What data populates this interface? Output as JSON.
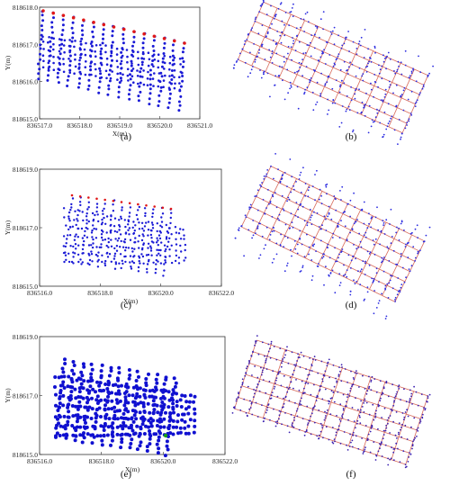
{
  "chart_data": [
    {
      "type": "scatter",
      "panel_label": "(a)",
      "xlabel": "X(m)",
      "ylabel": "Y(m)",
      "xlim": [
        836517.0,
        836521.0
      ],
      "ylim": [
        818615.0,
        818618.0
      ],
      "xticks": [
        "836517.0",
        "836518.0",
        "836519.0",
        "836520.0",
        "836521.0"
      ],
      "yticks": [
        "818615.0",
        "818616.0",
        "818617.0",
        "818618.0"
      ],
      "grid": false,
      "description_lines": "blue dots along 15 survey lines with red end markers",
      "colors": {
        "points": "#1a1ad6",
        "markers": "#e01818"
      }
    },
    {
      "type": "scatter",
      "panel_label": "(b)",
      "xlabel": "",
      "ylabel": "",
      "grid": false,
      "colors": {
        "points": "#2a2ae0",
        "grid_lines": "#d86a5a"
      }
    },
    {
      "type": "scatter",
      "panel_label": "(c)",
      "xlabel": "X(m)",
      "ylabel": "Y(m)",
      "xlim": [
        836516.0,
        836522.0
      ],
      "ylim": [
        818615.0,
        818619.0
      ],
      "xticks": [
        "836516.0",
        "836518.0",
        "836520.0",
        "836522.0"
      ],
      "yticks": [
        "818615.0",
        "818617.0",
        "818619.0"
      ],
      "grid": false,
      "colors": {
        "points": "#1a1ad6",
        "markers": "#e01818"
      }
    },
    {
      "type": "scatter",
      "panel_label": "(d)",
      "xlabel": "",
      "ylabel": "",
      "grid": false,
      "colors": {
        "points": "#2a2ae0",
        "grid_lines": "#d86a5a"
      }
    },
    {
      "type": "scatter",
      "panel_label": "(e)",
      "xlabel": "X(m)",
      "ylabel": "Y(m)",
      "xlim": [
        836516.0,
        836522.0
      ],
      "ylim": [
        818615.0,
        818619.0
      ],
      "xticks": [
        "836516.0",
        "836518.0",
        "836520.0",
        "836522.0"
      ],
      "yticks": [
        "818615.0",
        "818617.0",
        "818619.0"
      ],
      "grid": false,
      "colors": {
        "points": "#1010d0",
        "markers": "#18a018"
      }
    },
    {
      "type": "scatter",
      "panel_label": "(f)",
      "xlabel": "",
      "ylabel": "",
      "grid": false,
      "colors": {
        "points": "#3a20b0",
        "grid_lines": "#d86a5a"
      }
    }
  ]
}
